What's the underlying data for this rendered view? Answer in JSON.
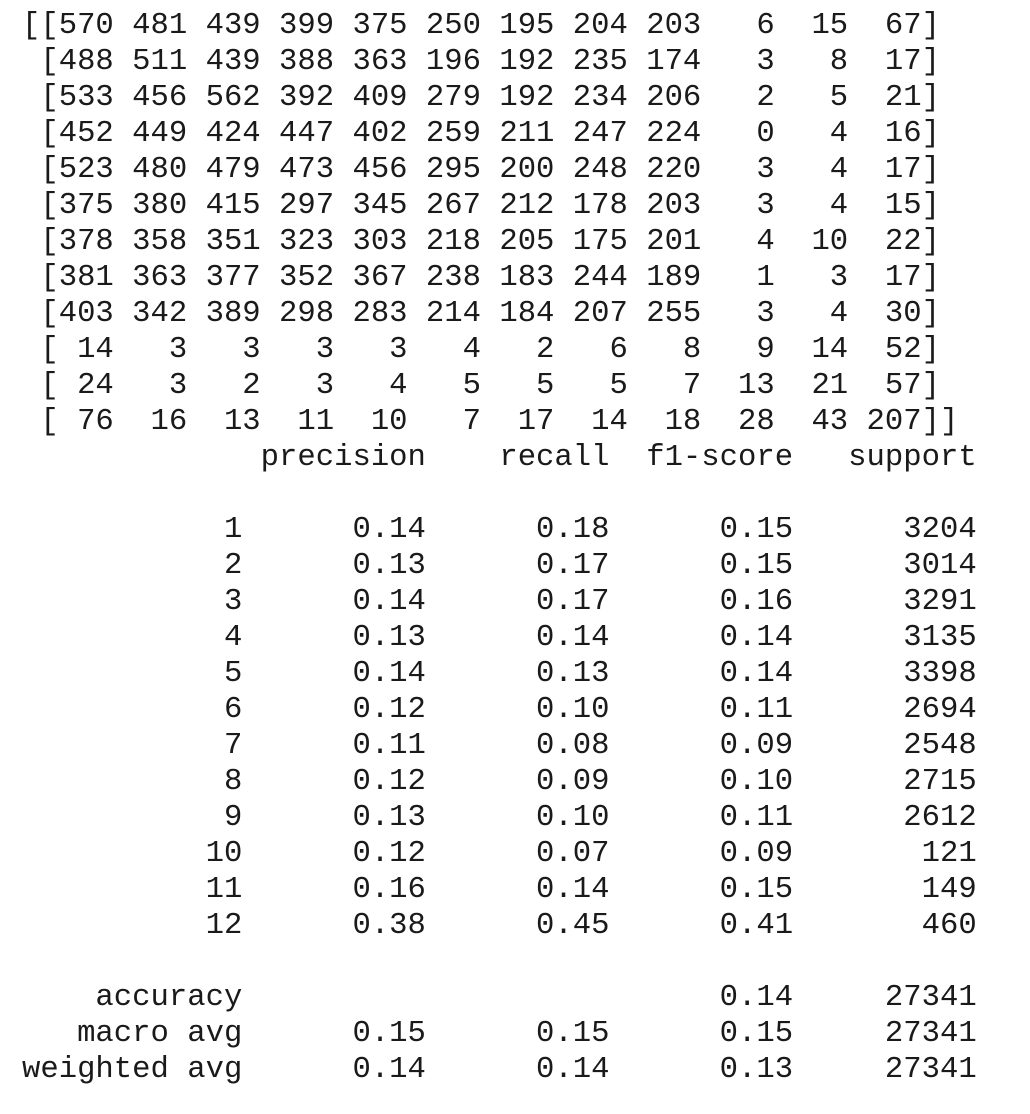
{
  "confusion_matrix": [
    [
      570,
      481,
      439,
      399,
      375,
      250,
      195,
      204,
      203,
      6,
      15,
      67
    ],
    [
      488,
      511,
      439,
      388,
      363,
      196,
      192,
      235,
      174,
      3,
      8,
      17
    ],
    [
      533,
      456,
      562,
      392,
      409,
      279,
      192,
      234,
      206,
      2,
      5,
      21
    ],
    [
      452,
      449,
      424,
      447,
      402,
      259,
      211,
      247,
      224,
      0,
      4,
      16
    ],
    [
      523,
      480,
      479,
      473,
      456,
      295,
      200,
      248,
      220,
      3,
      4,
      17
    ],
    [
      375,
      380,
      415,
      297,
      345,
      267,
      212,
      178,
      203,
      3,
      4,
      15
    ],
    [
      378,
      358,
      351,
      323,
      303,
      218,
      205,
      175,
      201,
      4,
      10,
      22
    ],
    [
      381,
      363,
      377,
      352,
      367,
      238,
      183,
      244,
      189,
      1,
      3,
      17
    ],
    [
      403,
      342,
      389,
      298,
      283,
      214,
      184,
      207,
      255,
      3,
      4,
      30
    ],
    [
      14,
      3,
      3,
      3,
      3,
      4,
      2,
      6,
      8,
      9,
      14,
      52
    ],
    [
      24,
      3,
      2,
      3,
      4,
      5,
      5,
      5,
      7,
      13,
      21,
      57
    ],
    [
      76,
      16,
      13,
      11,
      10,
      7,
      17,
      14,
      18,
      28,
      43,
      207
    ]
  ],
  "report": {
    "headers": [
      "precision",
      "recall",
      "f1-score",
      "support"
    ],
    "rows": [
      {
        "label": "1",
        "precision": "0.14",
        "recall": "0.18",
        "f1": "0.15",
        "support": "3204"
      },
      {
        "label": "2",
        "precision": "0.13",
        "recall": "0.17",
        "f1": "0.15",
        "support": "3014"
      },
      {
        "label": "3",
        "precision": "0.14",
        "recall": "0.17",
        "f1": "0.16",
        "support": "3291"
      },
      {
        "label": "4",
        "precision": "0.13",
        "recall": "0.14",
        "f1": "0.14",
        "support": "3135"
      },
      {
        "label": "5",
        "precision": "0.14",
        "recall": "0.13",
        "f1": "0.14",
        "support": "3398"
      },
      {
        "label": "6",
        "precision": "0.12",
        "recall": "0.10",
        "f1": "0.11",
        "support": "2694"
      },
      {
        "label": "7",
        "precision": "0.11",
        "recall": "0.08",
        "f1": "0.09",
        "support": "2548"
      },
      {
        "label": "8",
        "precision": "0.12",
        "recall": "0.09",
        "f1": "0.10",
        "support": "2715"
      },
      {
        "label": "9",
        "precision": "0.13",
        "recall": "0.10",
        "f1": "0.11",
        "support": "2612"
      },
      {
        "label": "10",
        "precision": "0.12",
        "recall": "0.07",
        "f1": "0.09",
        "support": "121"
      },
      {
        "label": "11",
        "precision": "0.16",
        "recall": "0.14",
        "f1": "0.15",
        "support": "149"
      },
      {
        "label": "12",
        "precision": "0.38",
        "recall": "0.45",
        "f1": "0.41",
        "support": "460"
      }
    ],
    "accuracy": {
      "label": "accuracy",
      "f1": "0.14",
      "support": "27341"
    },
    "macro_avg": {
      "label": "macro avg",
      "precision": "0.15",
      "recall": "0.15",
      "f1": "0.15",
      "support": "27341"
    },
    "weighted_avg": {
      "label": "weighted avg",
      "precision": "0.14",
      "recall": "0.14",
      "f1": "0.13",
      "support": "27341"
    }
  }
}
